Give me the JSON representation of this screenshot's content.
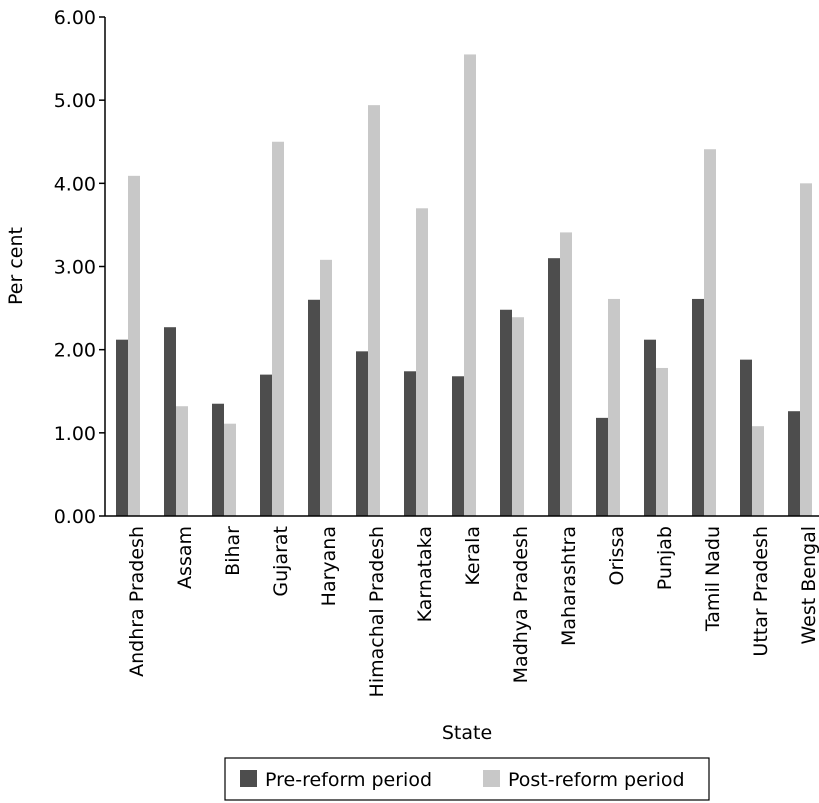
{
  "chart_data": {
    "type": "bar",
    "title": "",
    "xlabel": "State",
    "ylabel": "Per cent",
    "ylim": [
      0,
      6
    ],
    "yticks": [
      "0.00",
      "1.00",
      "2.00",
      "3.00",
      "4.00",
      "5.00",
      "6.00"
    ],
    "grid": false,
    "legend_position": "bottom",
    "categories": [
      "Andhra Pradesh",
      "Assam",
      "Bihar",
      "Gujarat",
      "Haryana",
      "Himachal Pradesh",
      "Karnataka",
      "Kerala",
      "Madhya Pradesh",
      "Maharashtra",
      "Orissa",
      "Punjab",
      "Tamil Nadu",
      "Uttar Pradesh",
      "West Bengal"
    ],
    "series": [
      {
        "name": "Pre-reform period",
        "color": "#4d4d4d",
        "values": [
          2.12,
          2.27,
          1.35,
          1.7,
          2.6,
          1.98,
          1.74,
          1.68,
          2.48,
          3.1,
          1.18,
          2.12,
          2.61,
          1.88,
          1.26
        ]
      },
      {
        "name": "Post-reform period",
        "color": "#c8c8c8",
        "values": [
          4.09,
          1.32,
          1.11,
          4.5,
          3.08,
          4.94,
          3.7,
          5.55,
          2.39,
          3.41,
          2.61,
          1.78,
          4.41,
          1.08,
          4.0
        ]
      }
    ]
  }
}
